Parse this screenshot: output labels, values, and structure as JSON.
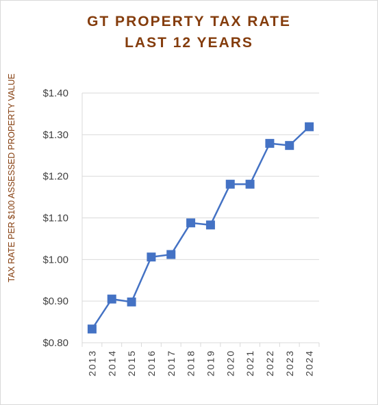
{
  "chart_data": {
    "type": "line",
    "title_line1": "GT PROPERTY TAX RATE",
    "title_line2": "LAST 12 YEARS",
    "ylabel": "TAX RATE PER $100 ASSESSED PROPERTY VALUE",
    "xlabel": "",
    "categories": [
      "2013",
      "2014",
      "2015",
      "2016",
      "2017",
      "2018",
      "2019",
      "2020",
      "2021",
      "2022",
      "2023",
      "2024"
    ],
    "series": [
      {
        "values": [
          0.833,
          0.905,
          0.898,
          1.006,
          1.012,
          1.088,
          1.083,
          1.181,
          1.181,
          1.279,
          1.274,
          1.319
        ]
      }
    ],
    "ylim": [
      0.8,
      1.4
    ],
    "yticks": [
      0.8,
      0.9,
      1.0,
      1.1,
      1.2,
      1.3,
      1.4
    ],
    "ytick_labels": [
      "$0.80",
      "$0.90",
      "$1.00",
      "$1.10",
      "$1.20",
      "$1.30",
      "$1.40"
    ],
    "grid": true,
    "colors": {
      "line": "#4472c4",
      "title": "#843c0c",
      "grid": "#d9d9d9"
    }
  }
}
